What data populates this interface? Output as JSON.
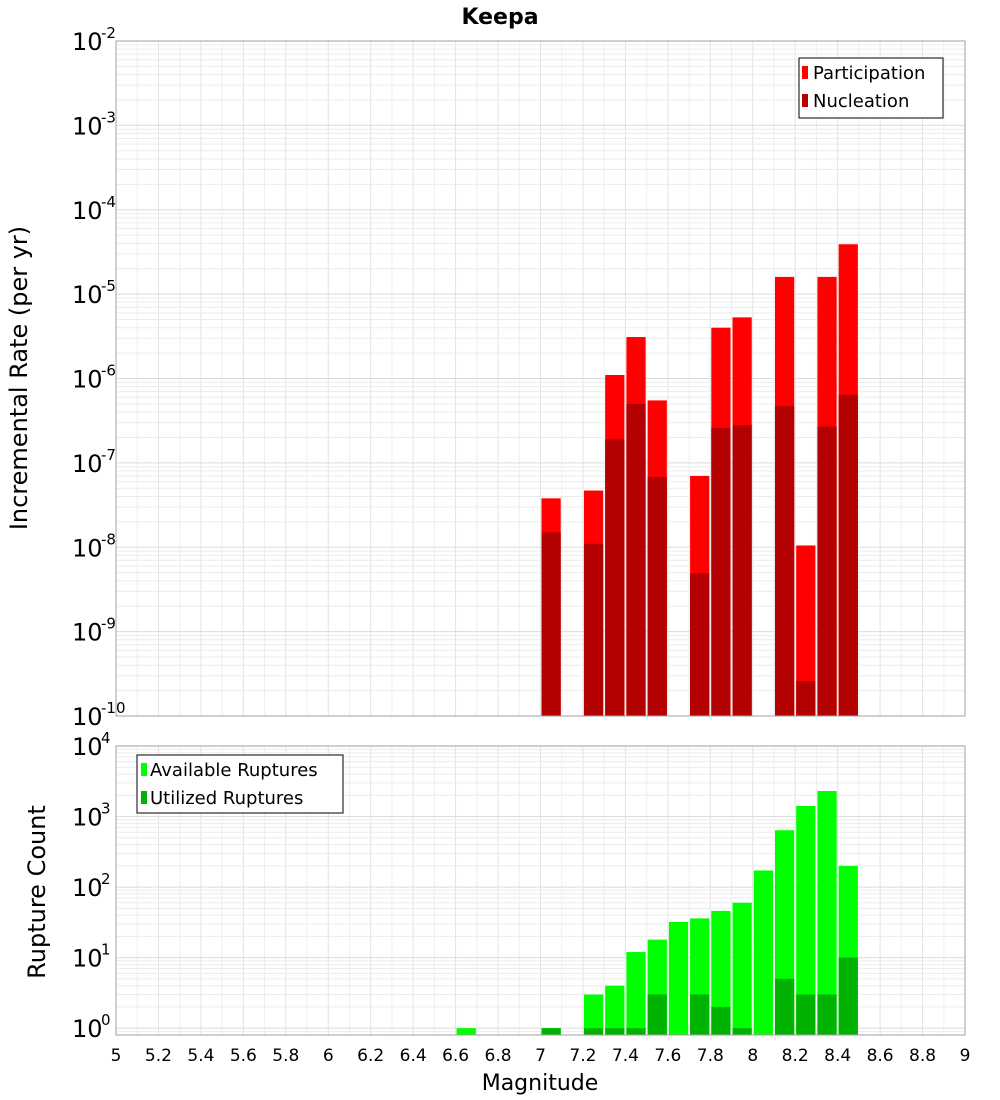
{
  "chart_data": [
    {
      "type": "bar",
      "title": "Keepa",
      "ylabel": "Incremental Rate (per yr)",
      "xlabel": "",
      "yscale": "log",
      "ylim": [
        1e-10,
        0.01
      ],
      "xlim": [
        5,
        9
      ],
      "grid": true,
      "legend_position": "top-right",
      "overlay": true,
      "x": [
        7.05,
        7.25,
        7.35,
        7.45,
        7.55,
        7.75,
        7.85,
        7.95,
        8.15,
        8.25,
        8.35,
        8.45
      ],
      "series": [
        {
          "name": "Participation",
          "color": "#ff0000",
          "values": [
            3.8e-08,
            4.7e-08,
            1.1e-06,
            3.1e-06,
            5.5e-07,
            7e-08,
            4e-06,
            5.3e-06,
            1.6e-05,
            1.05e-08,
            1.6e-05,
            3.9e-05
          ]
        },
        {
          "name": "Nucleation",
          "color": "#b30000",
          "values": [
            1.5e-08,
            1.1e-08,
            1.9e-07,
            5e-07,
            6.8e-08,
            4.9e-09,
            2.6e-07,
            2.8e-07,
            4.7e-07,
            2.6e-10,
            2.7e-07,
            6.4e-07
          ]
        }
      ]
    },
    {
      "type": "bar",
      "title": "",
      "ylabel": "Rupture Count",
      "xlabel": "Magnitude",
      "yscale": "log",
      "ylim": [
        0.8,
        10000
      ],
      "xlim": [
        5,
        9
      ],
      "grid": true,
      "legend_position": "top-left",
      "overlay": true,
      "x": [
        6.65,
        7.05,
        7.25,
        7.35,
        7.45,
        7.55,
        7.65,
        7.75,
        7.85,
        7.95,
        8.05,
        8.15,
        8.25,
        8.35,
        8.45
      ],
      "series": [
        {
          "name": "Available Ruptures",
          "color": "#00ff00",
          "values": [
            1,
            1,
            3,
            4,
            12,
            18,
            32,
            36,
            46,
            60,
            172,
            640,
            1410,
            2300,
            200
          ]
        },
        {
          "name": "Utilized Ruptures",
          "color": "#00b300",
          "values": [
            0,
            1,
            1,
            1,
            1,
            3,
            0,
            3,
            2,
            1,
            0,
            5,
            3,
            3,
            10
          ]
        }
      ]
    }
  ],
  "xticks": [
    "5",
    "5.2",
    "5.4",
    "5.6",
    "5.8",
    "6",
    "6.2",
    "6.4",
    "6.6",
    "6.8",
    "7",
    "7.2",
    "7.4",
    "7.6",
    "7.8",
    "8",
    "8.2",
    "8.4",
    "8.6",
    "8.8",
    "9"
  ],
  "top_yticks": {
    "base": "10",
    "exponents": [
      "-10",
      "-9",
      "-8",
      "-7",
      "-6",
      "-5",
      "-4",
      "-3",
      "-2"
    ]
  },
  "bottom_yticks": {
    "base": "10",
    "exponents": [
      "0",
      "1",
      "2",
      "3",
      "4"
    ]
  }
}
